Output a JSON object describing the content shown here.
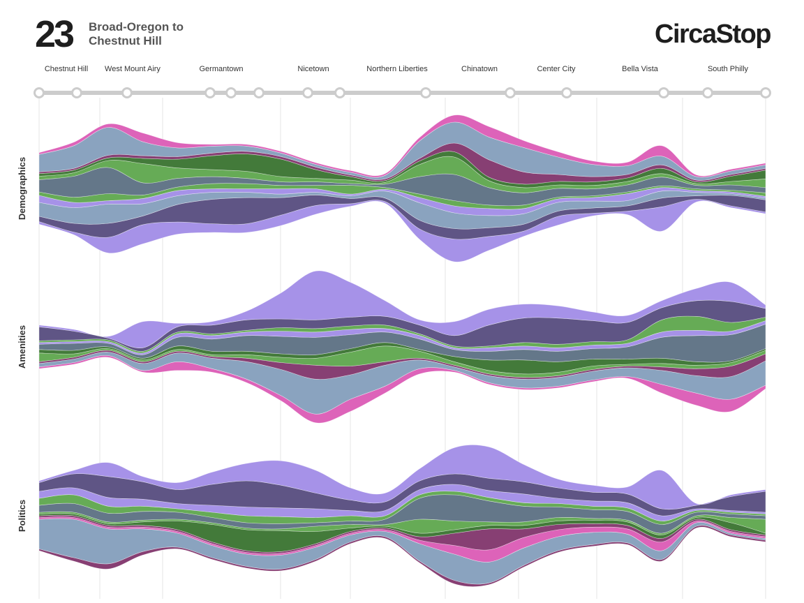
{
  "header": {
    "route_number": "23",
    "route_name_line1": "Broad-Oregon to",
    "route_name_line2": "Chestnut Hill",
    "brand": "CircaStop"
  },
  "colors": {
    "line": "#cccccc",
    "slate": "#647789",
    "steel": "#8aa3bf",
    "purple": "#a692e8",
    "plum": "#5f5585",
    "green": "#66ab56",
    "darkgreen": "#437a3a",
    "magenta": "#dd63b9",
    "wine": "#873f73",
    "label": "#333333"
  },
  "chart_data": {
    "type": "streamgraph",
    "neighborhoods": [
      "Chestnut Hill",
      "West Mount Airy",
      "Germantown",
      "Nicetown",
      "Northern Liberties",
      "Chinatown",
      "Center City",
      "Bella Vista",
      "South Philly"
    ],
    "stops": [
      0,
      1,
      2,
      3,
      4,
      5,
      6,
      7,
      8,
      9,
      10,
      11,
      12,
      13,
      14
    ],
    "panels": [
      {
        "label": "Demographics",
        "layers": [
          {
            "color": "purple",
            "values": [
              3,
              3,
              18,
              22,
              14,
              10,
              10,
              12,
              10,
              3,
              2,
              12,
              26,
              16,
              6,
              10,
              3,
              4,
              28,
              3,
              2,
              2
            ]
          },
          {
            "color": "plum",
            "values": [
              6,
              10,
              16,
              10,
              20,
              28,
              30,
              20,
              12,
              6,
              4,
              10,
              12,
              10,
              8,
              6,
              6,
              6,
              10,
              4,
              12,
              14
            ]
          },
          {
            "color": "steel",
            "values": [
              16,
              18,
              22,
              14,
              10,
              8,
              6,
              4,
              3,
              3,
              8,
              20,
              18,
              14,
              12,
              10,
              8,
              6,
              8,
              4,
              2,
              2
            ]
          },
          {
            "color": "purple",
            "values": [
              8,
              6,
              4,
              6,
              6,
              4,
              4,
              6,
              4,
              2,
              2,
              6,
              8,
              8,
              6,
              4,
              4,
              8,
              4,
              2,
              2,
              2
            ]
          },
          {
            "color": "green",
            "values": [
              4,
              6,
              8,
              4,
              4,
              6,
              6,
              4,
              4,
              10,
              2,
              4,
              6,
              4,
              4,
              2,
              2,
              2,
              2,
              2,
              2,
              4
            ]
          },
          {
            "color": "slate",
            "values": [
              14,
              24,
              30,
              14,
              10,
              8,
              6,
              4,
              4,
              2,
              4,
              20,
              30,
              20,
              14,
              10,
              8,
              8,
              10,
              4,
              6,
              6
            ]
          },
          {
            "color": "green",
            "values": [
              4,
              4,
              8,
              22,
              12,
              8,
              8,
              6,
              4,
              4,
              2,
              14,
              20,
              8,
              6,
              4,
              4,
              4,
              4,
              2,
              4,
              10
            ]
          },
          {
            "color": "darkgreen",
            "values": [
              3,
              3,
              3,
              6,
              10,
              16,
              20,
              20,
              10,
              4,
              2,
              4,
              6,
              4,
              4,
              4,
              4,
              4,
              6,
              2,
              6,
              10
            ]
          },
          {
            "color": "wine",
            "values": [
              2,
              2,
              3,
              3,
              3,
              3,
              3,
              3,
              3,
              2,
              2,
              3,
              10,
              20,
              14,
              8,
              6,
              4,
              4,
              2,
              2,
              2
            ]
          },
          {
            "color": "steel",
            "values": [
              20,
              26,
              32,
              16,
              10,
              8,
              6,
              4,
              3,
              3,
              4,
              20,
              24,
              26,
              28,
              20,
              14,
              10,
              10,
              4,
              4,
              4
            ]
          },
          {
            "color": "magenta",
            "values": [
              2,
              4,
              4,
              10,
              6,
              2,
              2,
              2,
              2,
              2,
              2,
              4,
              8,
              12,
              8,
              6,
              4,
              4,
              12,
              2,
              2,
              2
            ]
          }
        ]
      },
      {
        "label": "Amenities",
        "layers": [
          {
            "color": "magenta",
            "values": [
              2,
              2,
              2,
              2,
              10,
              4,
              4,
              6,
              10,
              14,
              8,
              6,
              2,
              2,
              2,
              2,
              2,
              2,
              10,
              14,
              14,
              4
            ]
          },
          {
            "color": "steel",
            "values": [
              4,
              4,
              4,
              8,
              10,
              12,
              20,
              30,
              40,
              28,
              24,
              10,
              4,
              8,
              10,
              10,
              10,
              10,
              16,
              20,
              26,
              28
            ]
          },
          {
            "color": "wine",
            "values": [
              2,
              2,
              2,
              2,
              2,
              2,
              4,
              8,
              16,
              10,
              4,
              2,
              2,
              2,
              2,
              2,
              2,
              2,
              4,
              8,
              12,
              8
            ]
          },
          {
            "color": "green",
            "values": [
              10,
              4,
              2,
              2,
              2,
              2,
              4,
              6,
              8,
              16,
              18,
              8,
              4,
              4,
              4,
              4,
              4,
              2,
              4,
              4,
              4,
              4
            ]
          },
          {
            "color": "darkgreen",
            "values": [
              4,
              4,
              2,
              2,
              4,
              4,
              4,
              4,
              4,
              4,
              4,
              2,
              6,
              12,
              16,
              12,
              8,
              6,
              6,
              4,
              2,
              2
            ]
          },
          {
            "color": "slate",
            "values": [
              6,
              8,
              4,
              4,
              10,
              14,
              18,
              20,
              20,
              16,
              12,
              12,
              8,
              10,
              12,
              12,
              12,
              14,
              24,
              30,
              30,
              28
            ]
          },
          {
            "color": "purple",
            "values": [
              2,
              2,
              2,
              2,
              4,
              4,
              4,
              6,
              6,
              6,
              4,
              4,
              2,
              4,
              4,
              4,
              4,
              4,
              6,
              6,
              4,
              4
            ]
          },
          {
            "color": "green",
            "values": [
              2,
              2,
              2,
              2,
              2,
              2,
              2,
              4,
              4,
              4,
              4,
              2,
              2,
              2,
              4,
              4,
              4,
              4,
              14,
              16,
              10,
              4
            ]
          },
          {
            "color": "plum",
            "values": [
              16,
              10,
              2,
              4,
              6,
              10,
              12,
              10,
              10,
              10,
              10,
              10,
              12,
              24,
              28,
              30,
              24,
              20,
              14,
              18,
              24,
              10
            ]
          },
          {
            "color": "purple",
            "values": [
              2,
              2,
              2,
              30,
              4,
              4,
              10,
              30,
              56,
              40,
              18,
              6,
              16,
              18,
              16,
              14,
              10,
              8,
              8,
              14,
              22,
              4
            ]
          }
        ]
      },
      {
        "label": "Politics",
        "layers": [
          {
            "color": "wine",
            "values": [
              2,
              4,
              6,
              4,
              2,
              2,
              2,
              2,
              2,
              2,
              2,
              2,
              4,
              2,
              2,
              2,
              2,
              2,
              2,
              2,
              2,
              2
            ]
          },
          {
            "color": "steel",
            "values": [
              34,
              44,
              40,
              26,
              16,
              14,
              14,
              16,
              14,
              8,
              6,
              20,
              30,
              24,
              20,
              16,
              14,
              10,
              10,
              4,
              2,
              2
            ]
          },
          {
            "color": "magenta",
            "values": [
              2,
              2,
              2,
              2,
              2,
              2,
              2,
              2,
              2,
              2,
              2,
              4,
              10,
              14,
              12,
              8,
              6,
              6,
              10,
              2,
              2,
              2
            ]
          },
          {
            "color": "wine",
            "values": [
              2,
              2,
              2,
              2,
              2,
              2,
              2,
              2,
              2,
              2,
              2,
              4,
              14,
              24,
              10,
              6,
              4,
              4,
              4,
              2,
              2,
              2
            ]
          },
          {
            "color": "darkgreen",
            "values": [
              2,
              2,
              2,
              4,
              10,
              20,
              24,
              24,
              14,
              4,
              2,
              4,
              4,
              4,
              4,
              4,
              4,
              4,
              4,
              2,
              8,
              2
            ]
          },
          {
            "color": "green",
            "values": [
              2,
              2,
              2,
              2,
              2,
              2,
              2,
              2,
              6,
              4,
              2,
              16,
              10,
              4,
              4,
              4,
              2,
              2,
              2,
              2,
              6,
              16
            ]
          },
          {
            "color": "slate",
            "values": [
              8,
              10,
              10,
              10,
              8,
              6,
              6,
              6,
              4,
              4,
              6,
              24,
              30,
              24,
              18,
              12,
              10,
              10,
              10,
              4,
              4,
              4
            ]
          },
          {
            "color": "green",
            "values": [
              8,
              10,
              8,
              6,
              4,
              6,
              8,
              8,
              6,
              6,
              4,
              4,
              4,
              4,
              4,
              4,
              4,
              4,
              4,
              2,
              2,
              2
            ]
          },
          {
            "color": "purple",
            "values": [
              8,
              8,
              10,
              8,
              6,
              8,
              10,
              10,
              10,
              6,
              6,
              6,
              8,
              8,
              10,
              6,
              6,
              6,
              6,
              2,
              2,
              2
            ]
          },
          {
            "color": "plum",
            "values": [
              10,
              16,
              24,
              20,
              16,
              24,
              30,
              26,
              18,
              12,
              10,
              10,
              12,
              14,
              14,
              12,
              10,
              10,
              8,
              4,
              16,
              24
            ]
          },
          {
            "color": "purple",
            "values": [
              2,
              4,
              16,
              6,
              8,
              14,
              20,
              28,
              26,
              14,
              10,
              14,
              30,
              36,
              20,
              10,
              8,
              8,
              44,
              2,
              2,
              2
            ]
          }
        ]
      }
    ]
  }
}
